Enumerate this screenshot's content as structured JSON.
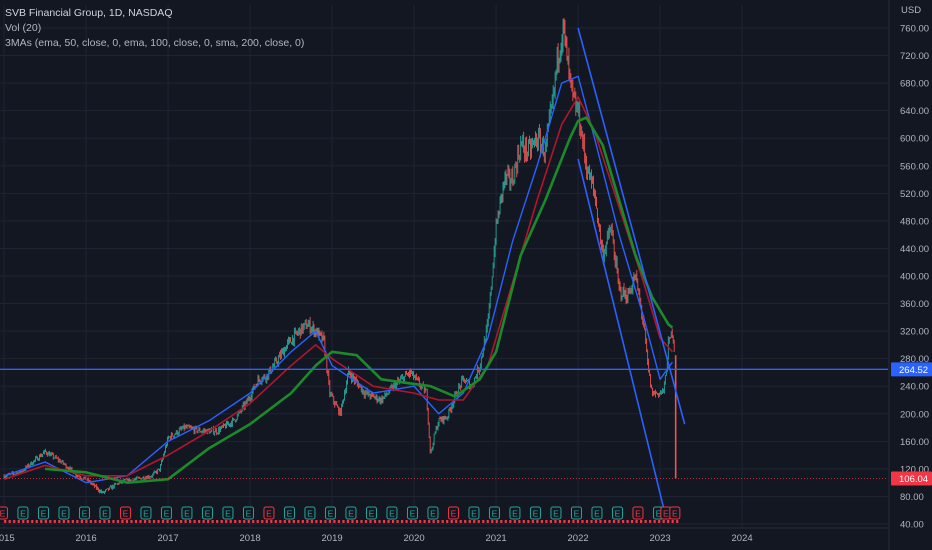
{
  "legend": {
    "title": "SVB Financial Group, 1D, NASDAQ",
    "volume": "Vol (20)",
    "indicator": "3MAs (ema, 50, close, 0, ema, 100, close, 0, sma, 200, close, 0)"
  },
  "colors": {
    "background": "#131722",
    "grid": "#1f2433",
    "up": "#26a69a",
    "down": "#ef5350",
    "ema50": "#2962ff",
    "ema100": "#b2162c",
    "sma200": "#1b8a2a",
    "trendline": "#2962ff",
    "axis_text": "#b2b5be",
    "price_tag_blue": "#2962ff",
    "price_tag_red": "#f23645",
    "earnings_red": "#f23645",
    "earnings_green": "#26a69a"
  },
  "chart_data": {
    "type": "line",
    "title": "SVB Financial Group, 1D, NASDAQ",
    "currency_label": "USD",
    "y_range": [
      40,
      770
    ],
    "y_ticks": [
      "760.00",
      "720.00",
      "680.00",
      "640.00",
      "600.00",
      "560.00",
      "520.00",
      "480.00",
      "440.00",
      "400.00",
      "360.00",
      "320.00",
      "280.00",
      "240.00",
      "200.00",
      "160.00",
      "120.00",
      "80.00",
      "40.00"
    ],
    "y_tick_values": [
      760,
      720,
      680,
      640,
      600,
      560,
      520,
      480,
      440,
      400,
      360,
      320,
      280,
      240,
      200,
      160,
      120,
      80,
      40
    ],
    "x_range": [
      2014.95,
      2025.4
    ],
    "x_ticks": [
      "2015",
      "2016",
      "2017",
      "2018",
      "2019",
      "2020",
      "2021",
      "2022",
      "2023",
      "2024"
    ],
    "x_tick_values": [
      2015,
      2016,
      2017,
      2018,
      2019,
      2020,
      2021,
      2022,
      2023,
      2024
    ],
    "grid": true,
    "series": [
      {
        "style": "price",
        "x": [
          2015.0,
          2015.2,
          2015.4,
          2015.5,
          2015.7,
          2015.9,
          2016.0,
          2016.1,
          2016.2,
          2016.4,
          2016.6,
          2016.8,
          2016.9,
          2017.0,
          2017.2,
          2017.4,
          2017.6,
          2017.8,
          2017.95,
          2018.1,
          2018.2,
          2018.35,
          2018.45,
          2018.6,
          2018.7,
          2018.8,
          2018.9,
          2018.97,
          2019.1,
          2019.2,
          2019.4,
          2019.6,
          2019.8,
          2019.95,
          2020.05,
          2020.15,
          2020.2,
          2020.25,
          2020.3,
          2020.4,
          2020.5,
          2020.6,
          2020.7,
          2020.8,
          2020.9,
          2021.0,
          2021.1,
          2021.2,
          2021.3,
          2021.4,
          2021.5,
          2021.6,
          2021.7,
          2021.75,
          2021.82,
          2021.9,
          2021.95,
          2022.0,
          2022.05,
          2022.1,
          2022.2,
          2022.3,
          2022.4,
          2022.5,
          2022.6,
          2022.7,
          2022.8,
          2022.85,
          2022.9,
          2023.0,
          2023.05,
          2023.1,
          2023.15,
          2023.18,
          2023.19
        ],
        "y": [
          110,
          115,
          135,
          145,
          130,
          110,
          105,
          95,
          85,
          100,
          105,
          110,
          120,
          165,
          180,
          175,
          175,
          190,
          215,
          250,
          255,
          280,
          300,
          320,
          330,
          320,
          305,
          230,
          200,
          260,
          230,
          220,
          245,
          260,
          245,
          230,
          140,
          170,
          190,
          195,
          225,
          250,
          240,
          270,
          330,
          470,
          540,
          540,
          590,
          580,
          600,
          580,
          660,
          720,
          760,
          680,
          650,
          640,
          600,
          560,
          520,
          430,
          470,
          380,
          370,
          400,
          330,
          270,
          230,
          230,
          235,
          300,
          320,
          290,
          106.04
        ],
        "open_ends": true
      },
      {
        "name": "ema 50",
        "style": "line",
        "x": [
          2015.0,
          2015.5,
          2016.0,
          2016.5,
          2017.0,
          2017.5,
          2018.0,
          2018.5,
          2018.8,
          2019.0,
          2019.5,
          2020.0,
          2020.3,
          2020.6,
          2020.9,
          2021.2,
          2021.5,
          2021.8,
          2022.0,
          2022.2,
          2022.5,
          2022.8,
          2023.0,
          2023.15
        ],
        "y": [
          110,
          130,
          100,
          110,
          160,
          190,
          230,
          290,
          320,
          270,
          230,
          240,
          200,
          230,
          310,
          450,
          560,
          680,
          690,
          600,
          460,
          340,
          250,
          275
        ]
      },
      {
        "name": "ema 100",
        "style": "line",
        "x": [
          2015.0,
          2015.5,
          2016.0,
          2016.5,
          2017.0,
          2017.5,
          2018.0,
          2018.5,
          2018.8,
          2019.0,
          2019.5,
          2020.0,
          2020.3,
          2020.6,
          2020.9,
          2021.2,
          2021.5,
          2021.8,
          2022.0,
          2022.2,
          2022.5,
          2022.8,
          2023.0,
          2023.15
        ],
        "y": [
          105,
          125,
          110,
          110,
          140,
          175,
          215,
          270,
          300,
          280,
          240,
          230,
          220,
          220,
          270,
          390,
          510,
          620,
          660,
          610,
          500,
          390,
          310,
          290
        ]
      },
      {
        "name": "sma 200",
        "style": "line",
        "x": [
          2015.5,
          2016.0,
          2016.5,
          2017.0,
          2017.5,
          2018.0,
          2018.5,
          2018.8,
          2019.0,
          2019.3,
          2019.6,
          2019.9,
          2020.2,
          2020.5,
          2020.8,
          2021.0,
          2021.3,
          2021.6,
          2021.9,
          2022.0,
          2022.1,
          2022.3,
          2022.5,
          2022.7,
          2022.9,
          2023.1,
          2023.15
        ],
        "y": [
          120,
          115,
          100,
          105,
          150,
          185,
          230,
          270,
          290,
          285,
          250,
          245,
          240,
          225,
          250,
          290,
          430,
          510,
          600,
          625,
          630,
          590,
          510,
          430,
          370,
          330,
          325
        ]
      },
      {
        "name": "support 264.52",
        "style": "hline",
        "x": [
          2014.95,
          2025.4
        ],
        "y": [
          264.52,
          264.52
        ]
      },
      {
        "name": "trend upper",
        "style": "trend",
        "x": [
          2022.0,
          2023.3
        ],
        "y": [
          760,
          185
        ]
      },
      {
        "name": "trend lower",
        "style": "trend",
        "x": [
          2022.0,
          2023.05
        ],
        "y": [
          570,
          60
        ]
      }
    ],
    "price_tags": [
      {
        "value": "264.52",
        "y": 264.52,
        "color": "blue"
      },
      {
        "value": "106.04",
        "y": 106.04,
        "color": "red"
      }
    ],
    "earnings_markers": [
      "E",
      "E",
      "E",
      "E",
      "E",
      "E",
      "E",
      "E",
      "E",
      "E",
      "E",
      "E",
      "E",
      "E",
      "E",
      "E",
      "E",
      "E",
      "E",
      "E",
      "E",
      "E",
      "E",
      "E",
      "E",
      "E",
      "E",
      "E",
      "E",
      "E",
      "E",
      "E",
      "E",
      "E",
      "E"
    ],
    "earnings_marker_colors": [
      "red",
      "green",
      "green",
      "green",
      "green",
      "green",
      "red",
      "green",
      "green",
      "green",
      "green",
      "green",
      "green",
      "red",
      "green",
      "green",
      "green",
      "green",
      "green",
      "green",
      "green",
      "green",
      "red",
      "green",
      "green",
      "green",
      "green",
      "green",
      "green",
      "green",
      "green",
      "red",
      "green",
      "red",
      "red"
    ],
    "earnings_marker_x": [
      2014.98,
      2015.23,
      2015.48,
      2015.73,
      2015.98,
      2016.23,
      2016.48,
      2016.73,
      2016.98,
      2017.23,
      2017.48,
      2017.73,
      2017.98,
      2018.23,
      2018.48,
      2018.73,
      2018.98,
      2019.23,
      2019.48,
      2019.73,
      2019.98,
      2020.23,
      2020.48,
      2020.73,
      2020.98,
      2021.23,
      2021.48,
      2021.73,
      2021.98,
      2022.23,
      2022.48,
      2022.73,
      2022.98,
      2023.07,
      2023.18
    ]
  }
}
